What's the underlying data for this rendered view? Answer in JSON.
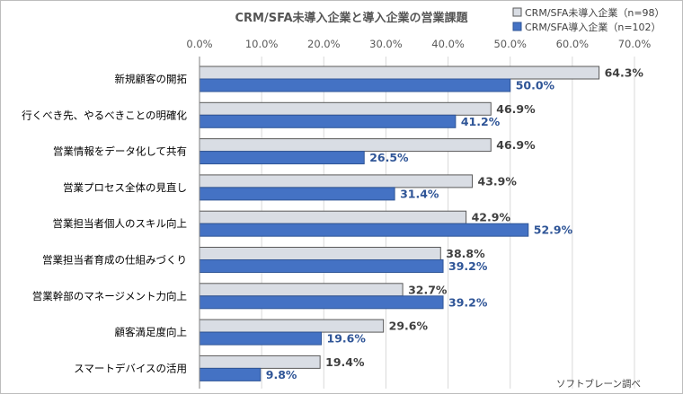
{
  "colors": {
    "series_a_fill": "#d9dde4",
    "series_a_stroke": "#595959",
    "series_b_fill": "#4472c4",
    "series_b_stroke": "#2f5597",
    "grid": "#d9d9d9"
  },
  "chart_data": {
    "type": "bar",
    "orientation": "horizontal",
    "title": "CRM/SFA未導入企業と導入企業の営業課題",
    "xlim": [
      0,
      70
    ],
    "ticks": [
      "0.0%",
      "10.0%",
      "20.0%",
      "30.0%",
      "40.0%",
      "50.0%",
      "60.0%",
      "70.0%"
    ],
    "tick_values": [
      0,
      10,
      20,
      30,
      40,
      50,
      60,
      70
    ],
    "grid": true,
    "legend_position": "top-right",
    "categories": [
      "新規顧客の開拓",
      "行くべき先、やるべきことの明確化",
      "営業情報をデータ化して共有",
      "営業プロセス全体の見直し",
      "営業担当者個人のスキル向上",
      "営業担当者育成の仕組みづくり",
      "営業幹部のマネージメント力向上",
      "顧客満足度向上",
      "スマートデバイスの活用"
    ],
    "series": [
      {
        "name": "CRM/SFA未導入企業（n=98）",
        "values": [
          64.3,
          46.9,
          46.9,
          43.9,
          42.9,
          38.8,
          32.7,
          29.6,
          19.4
        ],
        "labels": [
          "64.3%",
          "46.9%",
          "46.9%",
          "43.9%",
          "42.9%",
          "38.8%",
          "32.7%",
          "29.6%",
          "19.4%"
        ]
      },
      {
        "name": "CRM/SFA導入企業（n=102）",
        "values": [
          50.0,
          41.2,
          26.5,
          31.4,
          52.9,
          39.2,
          39.2,
          19.6,
          9.8
        ],
        "labels": [
          "50.0%",
          "41.2%",
          "26.5%",
          "31.4%",
          "52.9%",
          "39.2%",
          "39.2%",
          "19.6%",
          "9.8%"
        ]
      }
    ]
  },
  "source_note": "ソフトブレーン調べ"
}
